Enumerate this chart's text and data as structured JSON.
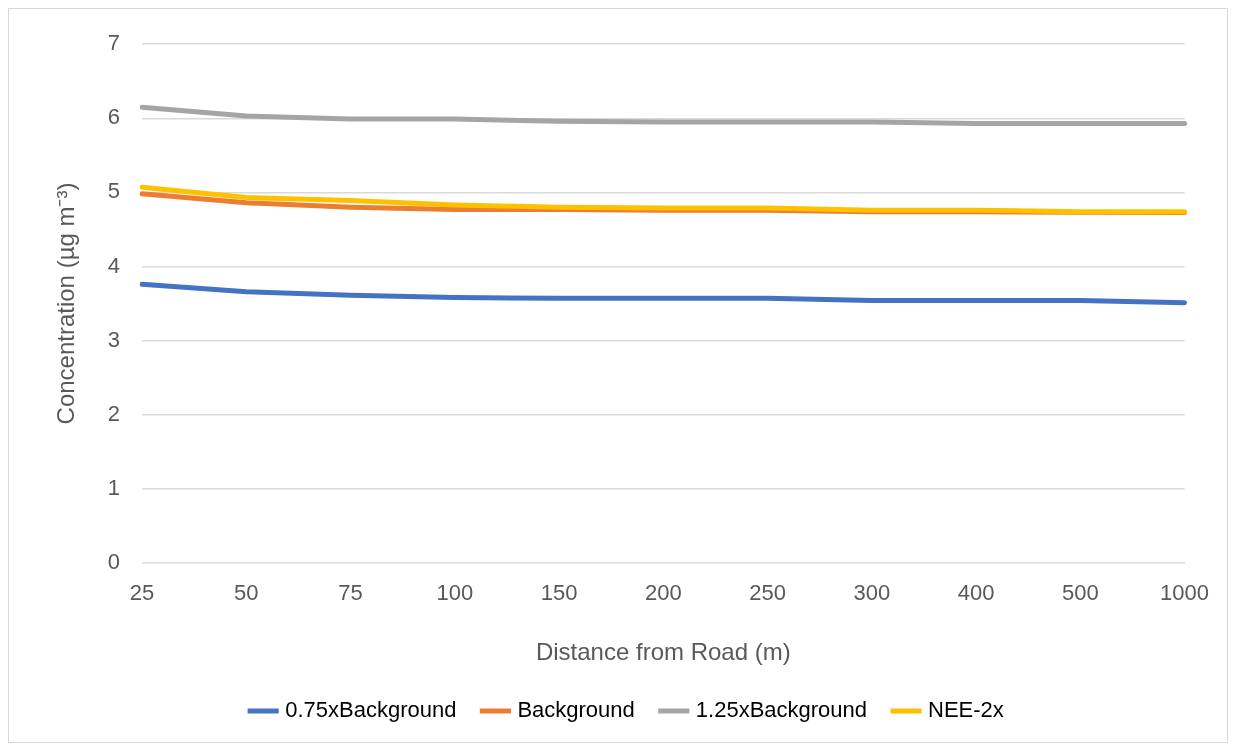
{
  "chart_data": {
    "type": "line",
    "xlabel": "Distance from Road (m)",
    "ylabel": "Concentration (µg m⁻³)",
    "categories": [
      "25",
      "50",
      "75",
      "100",
      "150",
      "200",
      "250",
      "300",
      "400",
      "500",
      "1000"
    ],
    "ylim": [
      0,
      7
    ],
    "yticks": [
      0,
      1,
      2,
      3,
      4,
      5,
      6,
      7
    ],
    "grid": "y",
    "legend": "bottom",
    "marker": "none",
    "line_style": "solid",
    "series": [
      {
        "name": "0.75xBackground",
        "color": "#4472c4",
        "values": [
          3.76,
          3.66,
          3.61,
          3.58,
          3.57,
          3.57,
          3.57,
          3.54,
          3.54,
          3.54,
          3.51
        ]
      },
      {
        "name": "Background",
        "color": "#ed7d31",
        "values": [
          4.98,
          4.86,
          4.8,
          4.77,
          4.77,
          4.76,
          4.76,
          4.74,
          4.74,
          4.73,
          4.73
        ]
      },
      {
        "name": "1.25xBackground",
        "color": "#a5a5a5",
        "values": [
          6.15,
          6.03,
          5.99,
          5.99,
          5.96,
          5.95,
          5.95,
          5.95,
          5.93,
          5.93,
          5.93
        ]
      },
      {
        "name": "NEE-2x",
        "color": "#ffc000",
        "values": [
          5.07,
          4.93,
          4.89,
          4.83,
          4.8,
          4.79,
          4.79,
          4.76,
          4.76,
          4.74,
          4.74
        ]
      }
    ]
  }
}
